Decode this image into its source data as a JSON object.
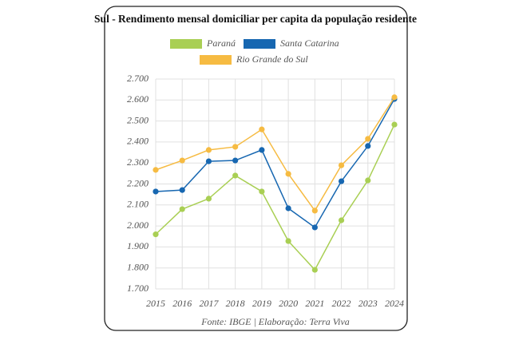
{
  "chart_data": {
    "type": "line",
    "title": "Sul - Rendimento mensal domiciliar per capita da população residente",
    "categories": [
      "2015",
      "2016",
      "2017",
      "2018",
      "2019",
      "2020",
      "2021",
      "2022",
      "2023",
      "2024"
    ],
    "series": [
      {
        "name": "Paraná",
        "color": "#a9cf54",
        "values": [
          1960,
          2080,
          2130,
          2240,
          2164,
          1928,
          1791,
          2027,
          2217,
          2483
        ]
      },
      {
        "name": "Santa Catarina",
        "color": "#1767b1",
        "values": [
          2164,
          2171,
          2308,
          2312,
          2362,
          2084,
          1993,
          2213,
          2381,
          2605
        ]
      },
      {
        "name": "Rio Grande do Sul",
        "color": "#f6bb42",
        "values": [
          2267,
          2312,
          2362,
          2377,
          2460,
          2248,
          2073,
          2289,
          2415,
          2613
        ]
      }
    ],
    "ylim": [
      1700,
      2700
    ],
    "yticks": [
      {
        "value": 1700,
        "label": "1.700"
      },
      {
        "value": 1800,
        "label": "1.800"
      },
      {
        "value": 1900,
        "label": "1.900"
      },
      {
        "value": 2000,
        "label": "2.000"
      },
      {
        "value": 2100,
        "label": "2.100"
      },
      {
        "value": 2200,
        "label": "2.200"
      },
      {
        "value": 2300,
        "label": "2.300"
      },
      {
        "value": 2400,
        "label": "2.400"
      },
      {
        "value": 2500,
        "label": "2.500"
      },
      {
        "value": 2600,
        "label": "2.600"
      },
      {
        "value": 2700,
        "label": "2.700"
      }
    ],
    "grid": true,
    "source": "Fonte: IBGE | Elaboração: Terra Viva"
  }
}
